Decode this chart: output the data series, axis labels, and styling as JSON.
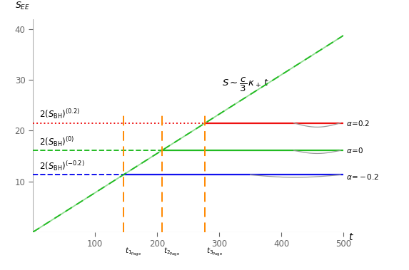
{
  "xlim": [
    0,
    500
  ],
  "ylim": [
    0,
    42
  ],
  "xticks": [
    100,
    200,
    300,
    400,
    500
  ],
  "yticks": [
    10,
    20,
    30,
    40
  ],
  "xlabel": "t",
  "ylabel": "$S_{EE}$",
  "sbh_red": 21.5,
  "sbh_green": 16.1,
  "sbh_blue": 11.3,
  "slope": 0.0775,
  "t1_page": 146,
  "t2_page": 208,
  "t3_page": 277,
  "radiation_color_solid": "#22bb22",
  "radiation_color_dashed": "#22bb22",
  "line_red": "#ee1111",
  "line_green": "#22bb22",
  "line_blue": "#1111ee",
  "dashed_color": "#ff8800",
  "gray_color": "#999999",
  "background": "#ffffff",
  "axis_color": "#aaaaaa",
  "tick_color": "#666666"
}
